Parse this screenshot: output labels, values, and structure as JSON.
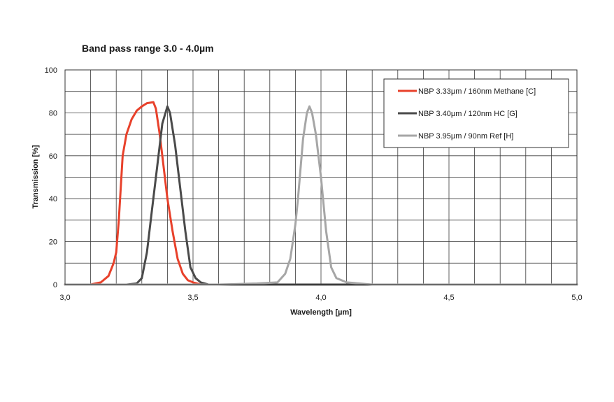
{
  "chart_data": {
    "type": "line",
    "title": "Band pass range 3.0 - 4.0µm",
    "xlabel": "Wavelength [µm]",
    "ylabel": "Transmission [%]",
    "xlim": [
      3.0,
      5.0
    ],
    "ylim": [
      0,
      100
    ],
    "x_ticks": [
      {
        "value": 3.0,
        "label": "3,0"
      },
      {
        "value": 3.5,
        "label": "3,5"
      },
      {
        "value": 4.0,
        "label": "4,0"
      },
      {
        "value": 4.5,
        "label": "4,5"
      },
      {
        "value": 5.0,
        "label": "5,0"
      }
    ],
    "y_ticks": [
      {
        "value": 0,
        "label": "0"
      },
      {
        "value": 20,
        "label": "20"
      },
      {
        "value": 40,
        "label": "40"
      },
      {
        "value": 60,
        "label": "60"
      },
      {
        "value": 80,
        "label": "80"
      },
      {
        "value": 100,
        "label": "100"
      }
    ],
    "grid": true,
    "grid_x_step": 0.1,
    "grid_y_step": 10,
    "legend_position": "top-right",
    "series": [
      {
        "name": "NBP 3.33µm / 160nm Methane [C]",
        "color": "#e8412b",
        "points": [
          [
            3.0,
            0
          ],
          [
            3.1,
            0
          ],
          [
            3.14,
            1
          ],
          [
            3.17,
            4
          ],
          [
            3.19,
            10
          ],
          [
            3.2,
            15
          ],
          [
            3.21,
            30
          ],
          [
            3.225,
            60
          ],
          [
            3.24,
            70
          ],
          [
            3.26,
            77
          ],
          [
            3.28,
            81
          ],
          [
            3.3,
            83
          ],
          [
            3.32,
            84.5
          ],
          [
            3.345,
            85
          ],
          [
            3.355,
            82
          ],
          [
            3.37,
            70
          ],
          [
            3.385,
            55
          ],
          [
            3.4,
            40
          ],
          [
            3.42,
            25
          ],
          [
            3.44,
            12
          ],
          [
            3.46,
            5
          ],
          [
            3.48,
            2
          ],
          [
            3.5,
            1
          ],
          [
            3.53,
            0
          ],
          [
            3.6,
            0
          ]
        ]
      },
      {
        "name": "NBP 3.40µm / 120nm HC [G]",
        "color": "#4a4a4a",
        "points": [
          [
            3.0,
            0
          ],
          [
            3.24,
            0
          ],
          [
            3.28,
            0.5
          ],
          [
            3.3,
            3
          ],
          [
            3.32,
            15
          ],
          [
            3.34,
            35
          ],
          [
            3.36,
            55
          ],
          [
            3.38,
            75
          ],
          [
            3.4,
            83
          ],
          [
            3.41,
            80
          ],
          [
            3.43,
            65
          ],
          [
            3.45,
            45
          ],
          [
            3.47,
            25
          ],
          [
            3.49,
            8
          ],
          [
            3.51,
            3
          ],
          [
            3.53,
            1
          ],
          [
            3.56,
            0
          ],
          [
            3.7,
            0
          ],
          [
            4.5,
            0
          ],
          [
            5.0,
            0
          ]
        ]
      },
      {
        "name": "NBP 3.95µm / 90nm Ref [H]",
        "color": "#a6a6a6",
        "points": [
          [
            3.0,
            0
          ],
          [
            3.6,
            0
          ],
          [
            3.75,
            0.5
          ],
          [
            3.83,
            1
          ],
          [
            3.86,
            5
          ],
          [
            3.88,
            12
          ],
          [
            3.9,
            28
          ],
          [
            3.91,
            40
          ],
          [
            3.93,
            68
          ],
          [
            3.945,
            80
          ],
          [
            3.955,
            83
          ],
          [
            3.965,
            80
          ],
          [
            3.98,
            70
          ],
          [
            4.0,
            50
          ],
          [
            4.02,
            25
          ],
          [
            4.04,
            8
          ],
          [
            4.06,
            3
          ],
          [
            4.1,
            1
          ],
          [
            4.2,
            0
          ],
          [
            5.0,
            0
          ]
        ]
      }
    ]
  }
}
